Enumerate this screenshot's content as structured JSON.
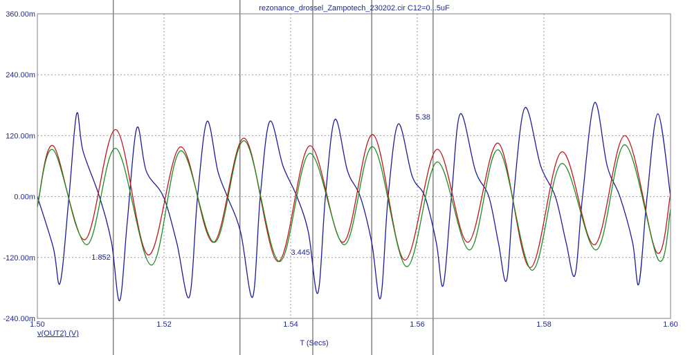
{
  "chart_data": {
    "type": "line",
    "title": "rezonance_drossel_Zampotech_230202.cir C12=0...5uF",
    "xlabel": "T (Secs)",
    "ylabel": "v(OUT2) (V)",
    "xlim": [
      1.5,
      1.6
    ],
    "ylim": [
      -0.24,
      0.36
    ],
    "x_ticks": [
      "1.50",
      "1.52",
      "1.54",
      "1.56",
      "1.58",
      "1.60"
    ],
    "y_ticks": [
      "-240.00m",
      "-120.00m",
      "0.00m",
      "120.00m",
      "240.00m",
      "360.00m"
    ],
    "grid": true,
    "series": [
      {
        "color": "#1b1b9a",
        "x": [
          1.5,
          1.5025,
          1.5036,
          1.505,
          1.5062,
          1.5072,
          1.5098,
          1.5117,
          1.513,
          1.5142,
          1.5157,
          1.5172,
          1.5199,
          1.522,
          1.524,
          1.5253,
          1.5268,
          1.5285,
          1.53,
          1.5321,
          1.534,
          1.5352,
          1.5367,
          1.5388,
          1.541,
          1.5428,
          1.5443,
          1.5455,
          1.547,
          1.549,
          1.551,
          1.5528,
          1.5542,
          1.5554,
          1.557,
          1.5592,
          1.5612,
          1.563,
          1.5641,
          1.5654,
          1.5668,
          1.5692,
          1.5713,
          1.5728,
          1.5741,
          1.5752,
          1.577,
          1.5795,
          1.5818,
          1.5835,
          1.5849,
          1.5861,
          1.588,
          1.59,
          1.592,
          1.594,
          1.595,
          1.5963,
          1.598,
          1.6
        ],
        "values": [
          0.0,
          -0.1,
          -0.17,
          0.0,
          0.163,
          0.09,
          0.0,
          -0.09,
          -0.205,
          -0.05,
          0.135,
          0.05,
          0.0,
          -0.09,
          -0.198,
          0.0,
          0.148,
          0.05,
          0.0,
          -0.07,
          -0.198,
          0.0,
          0.148,
          0.06,
          0.0,
          -0.07,
          -0.19,
          0.0,
          0.152,
          0.05,
          0.0,
          -0.09,
          -0.2,
          0.0,
          0.143,
          0.04,
          0.0,
          -0.09,
          -0.175,
          0.0,
          0.163,
          0.05,
          0.0,
          -0.09,
          -0.165,
          0.0,
          0.175,
          0.06,
          0.0,
          -0.09,
          -0.155,
          0.0,
          0.185,
          0.06,
          0.0,
          -0.09,
          -0.172,
          0.0,
          0.163,
          0.0
        ]
      },
      {
        "color": "#c0141a",
        "x": [
          1.5,
          1.5025,
          1.5075,
          1.5124,
          1.5175,
          1.5226,
          1.5278,
          1.5327,
          1.538,
          1.543,
          1.5483,
          1.553,
          1.558,
          1.5631,
          1.568,
          1.5728,
          1.5778,
          1.5828,
          1.588,
          1.5928,
          1.5978,
          1.6
        ],
        "values": [
          -0.02,
          0.1,
          -0.085,
          0.132,
          -0.115,
          0.098,
          -0.09,
          0.115,
          -0.128,
          0.1,
          -0.09,
          0.122,
          -0.125,
          0.093,
          -0.09,
          0.105,
          -0.14,
          0.088,
          -0.095,
          0.12,
          -0.11,
          0.005
        ]
      },
      {
        "color": "#1f8a1f",
        "x": [
          1.5,
          1.5025,
          1.5078,
          1.5124,
          1.518,
          1.5226,
          1.528,
          1.5327,
          1.5382,
          1.543,
          1.5485,
          1.553,
          1.5583,
          1.5631,
          1.5683,
          1.5728,
          1.5781,
          1.5828,
          1.5883,
          1.5928,
          1.5981,
          1.6
        ],
        "values": [
          -0.02,
          0.092,
          -0.095,
          0.095,
          -0.135,
          0.09,
          -0.09,
          0.11,
          -0.128,
          0.085,
          -0.095,
          0.098,
          -0.138,
          0.068,
          -0.105,
          0.092,
          -0.145,
          0.065,
          -0.105,
          0.102,
          -0.125,
          -0.025
        ]
      }
    ],
    "cursors": [
      {
        "x": 1.512,
        "label": "1.852"
      },
      {
        "x": 1.532
      },
      {
        "x": 1.5435,
        "label": "3.445"
      },
      {
        "x": 1.5528
      },
      {
        "x": 1.5625,
        "label": "5.38"
      }
    ]
  }
}
